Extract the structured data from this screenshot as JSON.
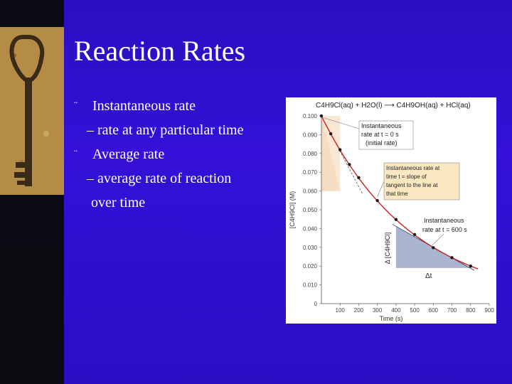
{
  "slide": {
    "title": "Reaction Rates",
    "bullets": [
      {
        "marker": "¨",
        "text": "Instantaneous rate"
      },
      {
        "marker": "",
        "text": "– rate at any particular time"
      },
      {
        "marker": "¨",
        "text": "Average rate"
      },
      {
        "marker": "",
        "text": "– average rate of reaction"
      },
      {
        "marker": "",
        "text": "over time"
      }
    ]
  },
  "colors": {
    "background": "#2e10d0",
    "left_band": "#0b0b12",
    "curve": "#cc2020",
    "points": "#1a1a1a",
    "initial_shade": "#f6dcc0",
    "tangent_shade": "#9aa8c8",
    "note_box": "#fbe8c0"
  },
  "chart_data": {
    "type": "line",
    "title": "C4H9Cl(aq) + H2O(l) ⟶ C4H9OH(aq) + HCl(aq)",
    "xlabel": "Time (s)",
    "ylabel": "[C4H9Cl] (M)",
    "xlim": [
      0,
      900
    ],
    "ylim": [
      0,
      0.1
    ],
    "x_ticks": [
      "100",
      "200",
      "300",
      "400",
      "500",
      "600",
      "700",
      "800",
      "900"
    ],
    "y_ticks": [
      "0",
      "0.010",
      "0.020",
      "0.030",
      "0.040",
      "0.050",
      "0.060",
      "0.070",
      "0.080",
      "0.090",
      "0.100"
    ],
    "grid": false,
    "series": [
      {
        "x": [
          0,
          50,
          100,
          150,
          200,
          300,
          400,
          500,
          600,
          700,
          800
        ],
        "y": [
          0.1,
          0.0905,
          0.082,
          0.0741,
          0.0671,
          0.0549,
          0.0448,
          0.0368,
          0.0298,
          0.0245,
          0.02
        ]
      }
    ],
    "annotations": [
      {
        "line1": "Instantaneous",
        "line2": "rate at t = 0 s",
        "line3": "(initial rate)"
      },
      {
        "line1": "Instantaneous rate at",
        "line2": "time t = slope of",
        "line3": "tangent to the line at",
        "line4": "that time"
      },
      {
        "line1": "Instantaneous",
        "line2": "rate at t = 600 s"
      },
      {
        "label_dy": "Δ [C4H9Cl]",
        "label_dt": "Δt"
      }
    ]
  }
}
